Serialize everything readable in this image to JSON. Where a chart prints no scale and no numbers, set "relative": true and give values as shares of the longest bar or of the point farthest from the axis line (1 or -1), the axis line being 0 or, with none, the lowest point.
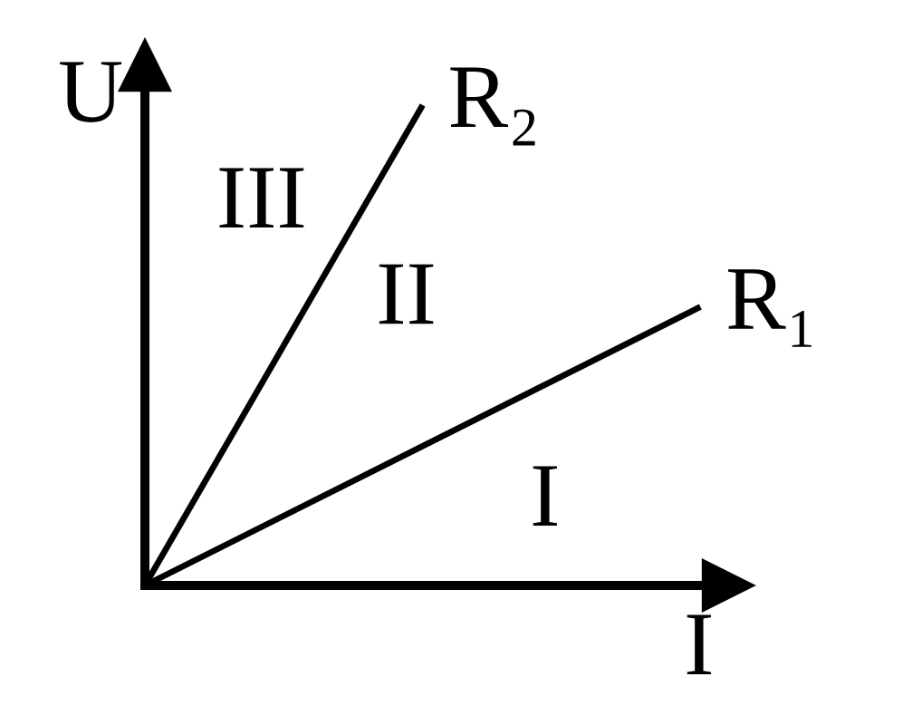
{
  "chart_data": {
    "type": "line",
    "relative": true,
    "xlabel": "I",
    "ylabel": "U",
    "categories": [
      null,
      null,
      null
    ],
    "series": [
      {
        "name": "R₂",
        "color": "#000000",
        "values": [
          0,
          1,
          null
        ]
      },
      {
        "name": "R₁",
        "color": "#000000",
        "values": [
          0,
          0.29,
          0.58
        ]
      }
    ],
    "annotations": [
      "III",
      "II",
      "I"
    ],
    "marker": "none",
    "line_style": "solid",
    "legend": false
  }
}
